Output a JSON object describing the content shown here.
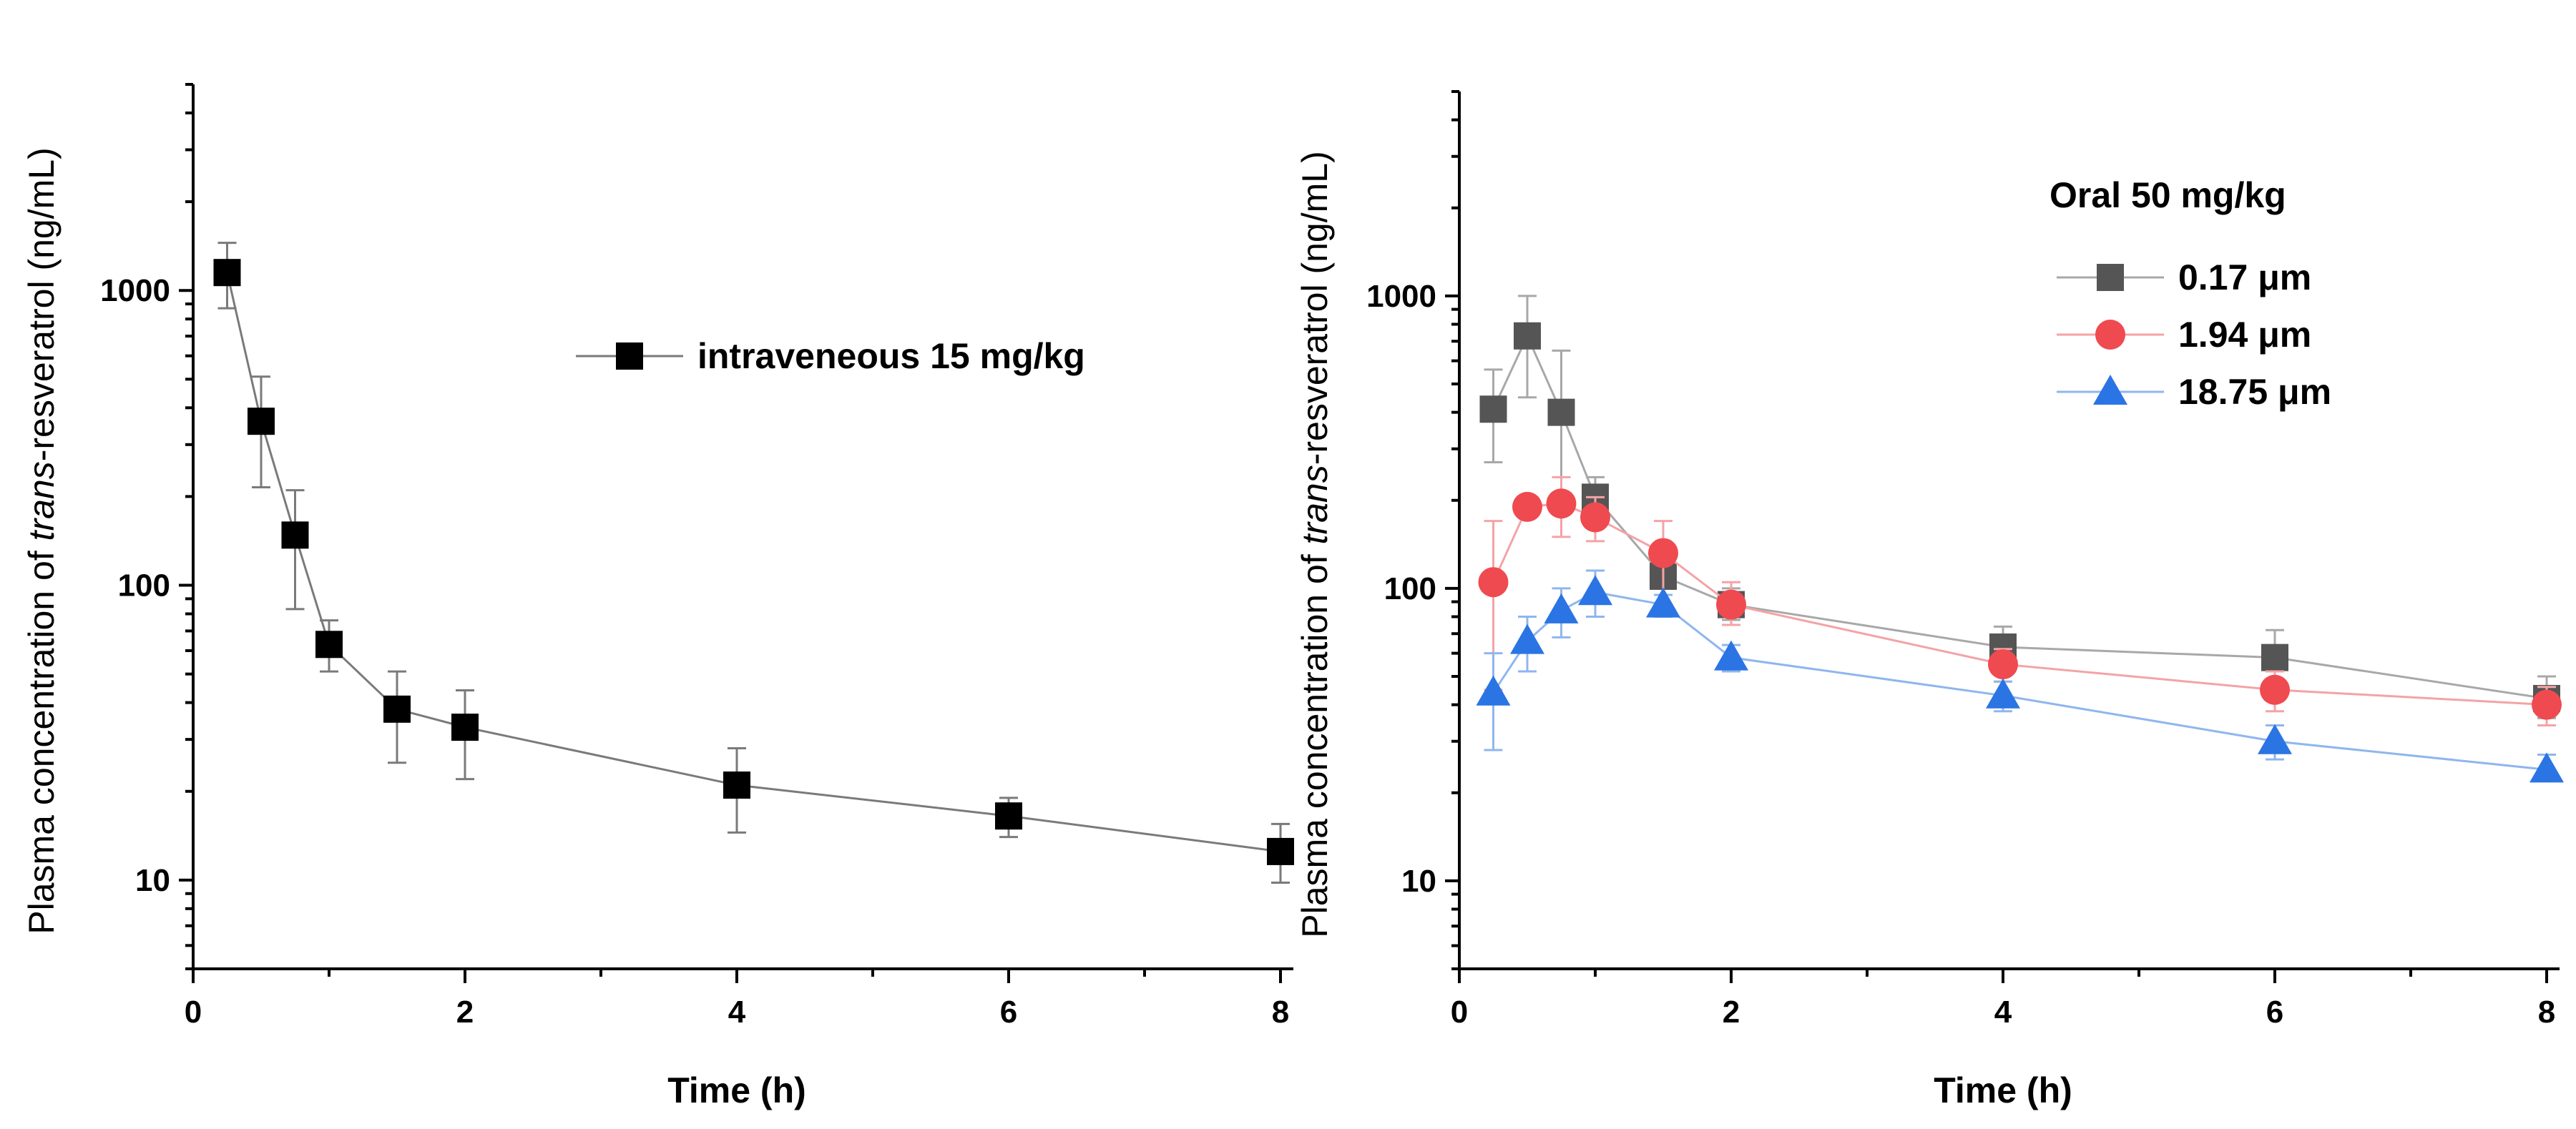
{
  "chart_data": [
    {
      "type": "line",
      "yscale": "log",
      "xlabel": "Time (h)",
      "ylabel_prefix": "Plasma concentration of ",
      "ylabel_italic": "trans",
      "ylabel_suffix": "-resveratrol (ng/mL)",
      "xlim": [
        0,
        8
      ],
      "ylim": [
        5,
        5000
      ],
      "x_ticks": [
        0,
        2,
        4,
        6,
        8
      ],
      "x_tick_labels": [
        "0",
        "2",
        "4",
        "6",
        "8"
      ],
      "y_ticks": [
        10,
        100,
        1000
      ],
      "y_tick_labels": [
        "10",
        "100",
        "1000"
      ],
      "legend_title": "",
      "series": [
        {
          "name": "intraveneous 15 mg/kg",
          "marker": "square",
          "color": "#000000",
          "line_color": "#7a7a7a",
          "x": [
            0.25,
            0.5,
            0.75,
            1,
            1.5,
            2,
            4,
            6,
            8
          ],
          "y": [
            1150,
            360,
            148,
            63,
            38,
            33,
            21,
            16.5,
            12.5
          ],
          "err_hi": [
            1450,
            510,
            210,
            76,
            51,
            44,
            28,
            19,
            15.5
          ],
          "err_lo": [
            870,
            215,
            83,
            51,
            25,
            22,
            14.5,
            14,
            9.8
          ]
        }
      ]
    },
    {
      "type": "line",
      "yscale": "log",
      "xlabel": "Time (h)",
      "ylabel_prefix": "Plasma concentration of ",
      "ylabel_italic": "trans",
      "ylabel_suffix": "-resveratrol (ng/mL)",
      "xlim": [
        0,
        8
      ],
      "ylim": [
        5,
        5000
      ],
      "x_ticks": [
        0,
        2,
        4,
        6,
        8
      ],
      "x_tick_labels": [
        "0",
        "2",
        "4",
        "6",
        "8"
      ],
      "y_ticks": [
        10,
        100,
        1000
      ],
      "y_tick_labels": [
        "10",
        "100",
        "1000"
      ],
      "legend_title": "Oral 50 mg/kg",
      "series": [
        {
          "name": "0.17 μm",
          "marker": "square",
          "color": "#555555",
          "line_color": "#a8a8a8",
          "x": [
            0.25,
            0.5,
            0.75,
            1,
            1.5,
            2,
            4,
            6,
            8
          ],
          "y": [
            410,
            730,
            400,
            205,
            110,
            88,
            63,
            58,
            42
          ],
          "err_hi": [
            560,
            1000,
            650,
            240,
            125,
            100,
            74,
            72,
            50
          ],
          "err_lo": [
            270,
            450,
            210,
            170,
            100,
            78,
            56,
            48,
            36
          ]
        },
        {
          "name": "1.94 μm",
          "marker": "circle",
          "color": "#ef4a4f",
          "line_color": "#f4a3a6",
          "x": [
            0.25,
            0.5,
            0.75,
            1,
            1.5,
            2,
            4,
            6,
            8
          ],
          "y": [
            105,
            190,
            195,
            175,
            132,
            88,
            55,
            45,
            40
          ],
          "err_hi": [
            170,
            205,
            240,
            205,
            170,
            105,
            62,
            52,
            46
          ],
          "err_lo": [
            45,
            175,
            150,
            145,
            95,
            75,
            48,
            38,
            34
          ]
        },
        {
          "name": "18.75 μm",
          "marker": "triangle",
          "color": "#2b74e4",
          "line_color": "#8fb6ee",
          "x": [
            0.25,
            0.5,
            0.75,
            1,
            1.5,
            2,
            4,
            6,
            8
          ],
          "y": [
            44,
            66,
            84,
            97,
            88,
            58,
            43,
            30,
            24
          ],
          "err_hi": [
            60,
            80,
            100,
            115,
            95,
            64,
            48,
            34,
            27
          ],
          "err_lo": [
            28,
            52,
            68,
            80,
            80,
            52,
            38,
            26,
            22
          ]
        }
      ]
    }
  ]
}
